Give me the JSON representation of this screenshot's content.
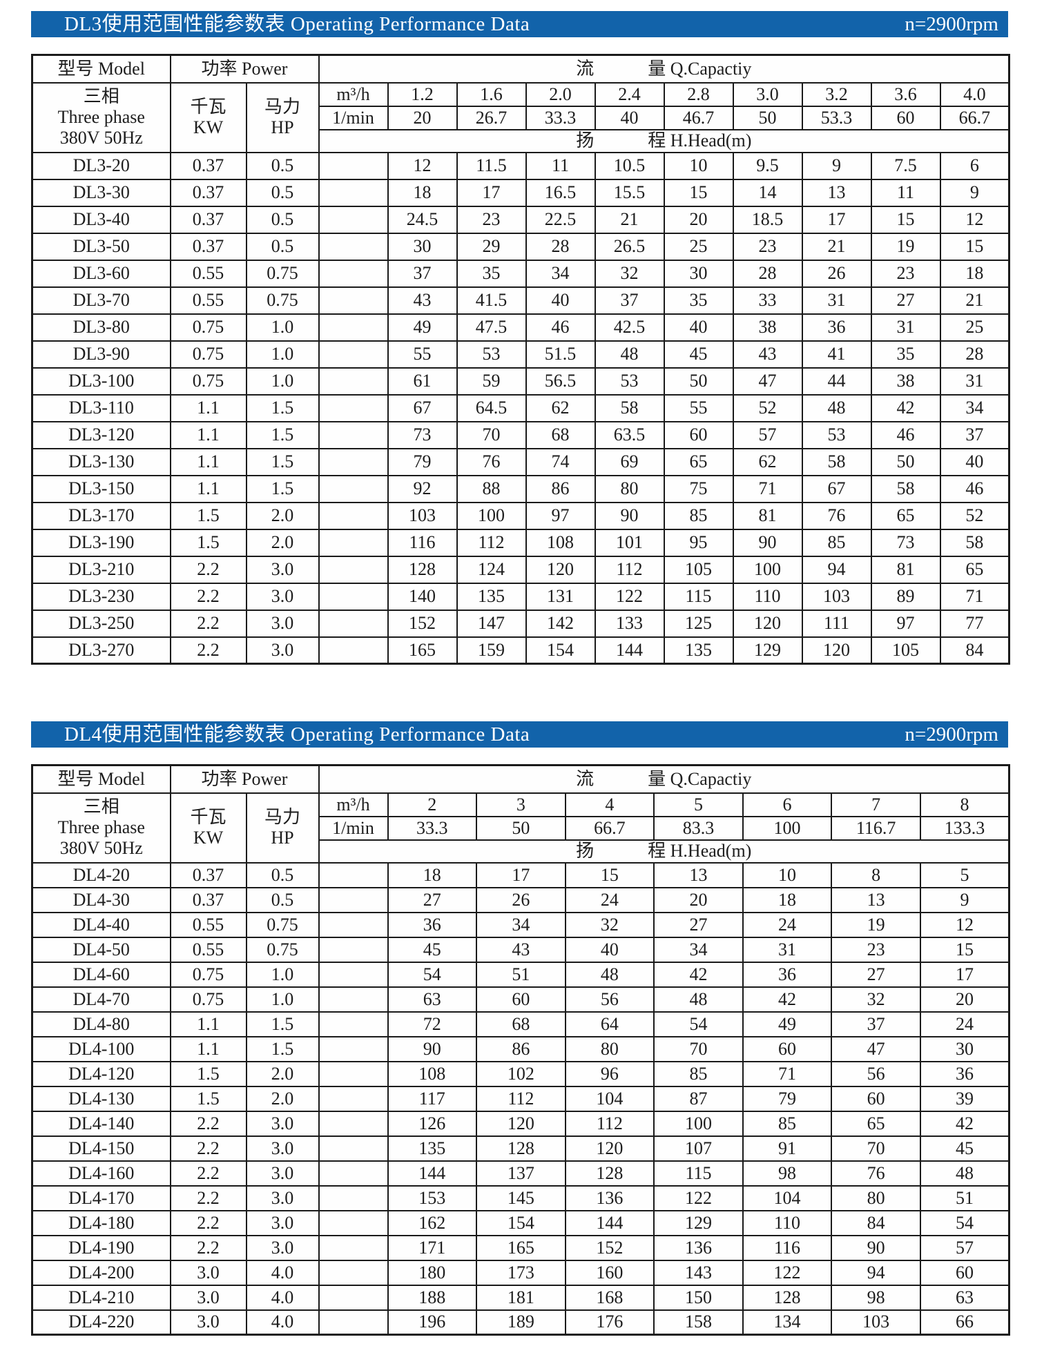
{
  "colors": {
    "bar_blue": "#1263aa",
    "border": "#1a1a1a",
    "text": "#1d1d1d",
    "paper": "#ffffff"
  },
  "tables": [
    {
      "bar": {
        "title": "DL3使用范围性能参数表 Operating Performance Data",
        "rpm": "n=2900rpm"
      },
      "head": {
        "model": "型号  Model",
        "power": "功率  Power",
        "capacity": "流　　　量  Q.Capactiy",
        "phase_lines": [
          "三相",
          "Three phase",
          "380V 50Hz"
        ],
        "kw_lines": [
          "千瓦",
          "KW"
        ],
        "hp_lines": [
          "马力",
          "HP"
        ],
        "m3h": "m³/h",
        "lmin": "1/min",
        "head_m": "扬　　　程  H.Head(m)",
        "m3h_values": [
          "1.2",
          "1.6",
          "2.0",
          "2.4",
          "2.8",
          "3.0",
          "3.2",
          "3.6",
          "4.0"
        ],
        "lmin_values": [
          "20",
          "26.7",
          "33.3",
          "40",
          "46.7",
          "50",
          "53.3",
          "60",
          "66.7"
        ]
      },
      "rows": [
        {
          "model": "DL3-20",
          "kw": "0.37",
          "hp": "0.5",
          "head": [
            "12",
            "11.5",
            "11",
            "10.5",
            "10",
            "9.5",
            "9",
            "7.5",
            "6"
          ]
        },
        {
          "model": "DL3-30",
          "kw": "0.37",
          "hp": "0.5",
          "head": [
            "18",
            "17",
            "16.5",
            "15.5",
            "15",
            "14",
            "13",
            "11",
            "9"
          ]
        },
        {
          "model": "DL3-40",
          "kw": "0.37",
          "hp": "0.5",
          "head": [
            "24.5",
            "23",
            "22.5",
            "21",
            "20",
            "18.5",
            "17",
            "15",
            "12"
          ]
        },
        {
          "model": "DL3-50",
          "kw": "0.37",
          "hp": "0.5",
          "head": [
            "30",
            "29",
            "28",
            "26.5",
            "25",
            "23",
            "21",
            "19",
            "15"
          ]
        },
        {
          "model": "DL3-60",
          "kw": "0.55",
          "hp": "0.75",
          "head": [
            "37",
            "35",
            "34",
            "32",
            "30",
            "28",
            "26",
            "23",
            "18"
          ]
        },
        {
          "model": "DL3-70",
          "kw": "0.55",
          "hp": "0.75",
          "head": [
            "43",
            "41.5",
            "40",
            "37",
            "35",
            "33",
            "31",
            "27",
            "21"
          ]
        },
        {
          "model": "DL3-80",
          "kw": "0.75",
          "hp": "1.0",
          "head": [
            "49",
            "47.5",
            "46",
            "42.5",
            "40",
            "38",
            "36",
            "31",
            "25"
          ]
        },
        {
          "model": "DL3-90",
          "kw": "0.75",
          "hp": "1.0",
          "head": [
            "55",
            "53",
            "51.5",
            "48",
            "45",
            "43",
            "41",
            "35",
            "28"
          ]
        },
        {
          "model": "DL3-100",
          "kw": "0.75",
          "hp": "1.0",
          "head": [
            "61",
            "59",
            "56.5",
            "53",
            "50",
            "47",
            "44",
            "38",
            "31"
          ]
        },
        {
          "model": "DL3-110",
          "kw": "1.1",
          "hp": "1.5",
          "head": [
            "67",
            "64.5",
            "62",
            "58",
            "55",
            "52",
            "48",
            "42",
            "34"
          ]
        },
        {
          "model": "DL3-120",
          "kw": "1.1",
          "hp": "1.5",
          "head": [
            "73",
            "70",
            "68",
            "63.5",
            "60",
            "57",
            "53",
            "46",
            "37"
          ]
        },
        {
          "model": "DL3-130",
          "kw": "1.1",
          "hp": "1.5",
          "head": [
            "79",
            "76",
            "74",
            "69",
            "65",
            "62",
            "58",
            "50",
            "40"
          ]
        },
        {
          "model": "DL3-150",
          "kw": "1.1",
          "hp": "1.5",
          "head": [
            "92",
            "88",
            "86",
            "80",
            "75",
            "71",
            "67",
            "58",
            "46"
          ]
        },
        {
          "model": "DL3-170",
          "kw": "1.5",
          "hp": "2.0",
          "head": [
            "103",
            "100",
            "97",
            "90",
            "85",
            "81",
            "76",
            "65",
            "52"
          ]
        },
        {
          "model": "DL3-190",
          "kw": "1.5",
          "hp": "2.0",
          "head": [
            "116",
            "112",
            "108",
            "101",
            "95",
            "90",
            "85",
            "73",
            "58"
          ]
        },
        {
          "model": "DL3-210",
          "kw": "2.2",
          "hp": "3.0",
          "head": [
            "128",
            "124",
            "120",
            "112",
            "105",
            "100",
            "94",
            "81",
            "65"
          ]
        },
        {
          "model": "DL3-230",
          "kw": "2.2",
          "hp": "3.0",
          "head": [
            "140",
            "135",
            "131",
            "122",
            "115",
            "110",
            "103",
            "89",
            "71"
          ]
        },
        {
          "model": "DL3-250",
          "kw": "2.2",
          "hp": "3.0",
          "head": [
            "152",
            "147",
            "142",
            "133",
            "125",
            "120",
            "111",
            "97",
            "77"
          ]
        },
        {
          "model": "DL3-270",
          "kw": "2.2",
          "hp": "3.0",
          "head": [
            "165",
            "159",
            "154",
            "144",
            "135",
            "129",
            "120",
            "105",
            "84"
          ]
        }
      ]
    },
    {
      "bar": {
        "title": "DL4使用范围性能参数表 Operating Performance Data",
        "rpm": "n=2900rpm"
      },
      "head": {
        "model": "型号  Model",
        "power": "功率  Power",
        "capacity": "流　　　量  Q.Capactiy",
        "phase_lines": [
          "三相",
          "Three phase",
          "380V 50Hz"
        ],
        "kw_lines": [
          "千瓦",
          "KW"
        ],
        "hp_lines": [
          "马力",
          "HP"
        ],
        "m3h": "m³/h",
        "lmin": "1/min",
        "head_m": "扬　　　程  H.Head(m)",
        "m3h_values": [
          "2",
          "3",
          "4",
          "5",
          "6",
          "7",
          "8"
        ],
        "lmin_values": [
          "33.3",
          "50",
          "66.7",
          "83.3",
          "100",
          "116.7",
          "133.3"
        ]
      },
      "rows": [
        {
          "model": "DL4-20",
          "kw": "0.37",
          "hp": "0.5",
          "head": [
            "18",
            "17",
            "15",
            "13",
            "10",
            "8",
            "5"
          ]
        },
        {
          "model": "DL4-30",
          "kw": "0.37",
          "hp": "0.5",
          "head": [
            "27",
            "26",
            "24",
            "20",
            "18",
            "13",
            "9"
          ]
        },
        {
          "model": "DL4-40",
          "kw": "0.55",
          "hp": "0.75",
          "head": [
            "36",
            "34",
            "32",
            "27",
            "24",
            "19",
            "12"
          ]
        },
        {
          "model": "DL4-50",
          "kw": "0.55",
          "hp": "0.75",
          "head": [
            "45",
            "43",
            "40",
            "34",
            "31",
            "23",
            "15"
          ]
        },
        {
          "model": "DL4-60",
          "kw": "0.75",
          "hp": "1.0",
          "head": [
            "54",
            "51",
            "48",
            "42",
            "36",
            "27",
            "17"
          ]
        },
        {
          "model": "DL4-70",
          "kw": "0.75",
          "hp": "1.0",
          "head": [
            "63",
            "60",
            "56",
            "48",
            "42",
            "32",
            "20"
          ]
        },
        {
          "model": "DL4-80",
          "kw": "1.1",
          "hp": "1.5",
          "head": [
            "72",
            "68",
            "64",
            "54",
            "49",
            "37",
            "24"
          ]
        },
        {
          "model": "DL4-100",
          "kw": "1.1",
          "hp": "1.5",
          "head": [
            "90",
            "86",
            "80",
            "70",
            "60",
            "47",
            "30"
          ]
        },
        {
          "model": "DL4-120",
          "kw": "1.5",
          "hp": "2.0",
          "head": [
            "108",
            "102",
            "96",
            "85",
            "71",
            "56",
            "36"
          ]
        },
        {
          "model": "DL4-130",
          "kw": "1.5",
          "hp": "2.0",
          "head": [
            "117",
            "112",
            "104",
            "87",
            "79",
            "60",
            "39"
          ]
        },
        {
          "model": "DL4-140",
          "kw": "2.2",
          "hp": "3.0",
          "head": [
            "126",
            "120",
            "112",
            "100",
            "85",
            "65",
            "42"
          ]
        },
        {
          "model": "DL4-150",
          "kw": "2.2",
          "hp": "3.0",
          "head": [
            "135",
            "128",
            "120",
            "107",
            "91",
            "70",
            "45"
          ]
        },
        {
          "model": "DL4-160",
          "kw": "2.2",
          "hp": "3.0",
          "head": [
            "144",
            "137",
            "128",
            "115",
            "98",
            "76",
            "48"
          ]
        },
        {
          "model": "DL4-170",
          "kw": "2.2",
          "hp": "3.0",
          "head": [
            "153",
            "145",
            "136",
            "122",
            "104",
            "80",
            "51"
          ]
        },
        {
          "model": "DL4-180",
          "kw": "2.2",
          "hp": "3.0",
          "head": [
            "162",
            "154",
            "144",
            "129",
            "110",
            "84",
            "54"
          ]
        },
        {
          "model": "DL4-190",
          "kw": "2.2",
          "hp": "3.0",
          "head": [
            "171",
            "165",
            "152",
            "136",
            "116",
            "90",
            "57"
          ]
        },
        {
          "model": "DL4-200",
          "kw": "3.0",
          "hp": "4.0",
          "head": [
            "180",
            "173",
            "160",
            "143",
            "122",
            "94",
            "60"
          ]
        },
        {
          "model": "DL4-210",
          "kw": "3.0",
          "hp": "4.0",
          "head": [
            "188",
            "181",
            "168",
            "150",
            "128",
            "98",
            "63"
          ]
        },
        {
          "model": "DL4-220",
          "kw": "3.0",
          "hp": "4.0",
          "head": [
            "196",
            "189",
            "176",
            "158",
            "134",
            "103",
            "66"
          ]
        }
      ]
    }
  ]
}
